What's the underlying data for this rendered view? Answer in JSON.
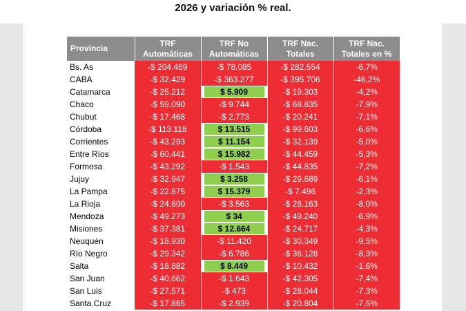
{
  "heading": "2026 y variación % real.",
  "table": {
    "headers": [
      {
        "line1": "Provincia",
        "line2": ""
      },
      {
        "line1": "TRF",
        "line2": "Automáticas"
      },
      {
        "line1": "TRF No",
        "line2": "Automáticas"
      },
      {
        "line1": "TRF Nac.",
        "line2": "Totales"
      },
      {
        "line1": "TRF Nac.",
        "line2": "Totales en %"
      }
    ],
    "rows": [
      {
        "provincia": "Bs. As",
        "auto": "-$ 204.469",
        "no_auto": "-$ 78.085",
        "totales": "-$ 282.554",
        "pct": "-6,7%"
      },
      {
        "provincia": "CABA",
        "auto": "-$ 32.429",
        "no_auto": "-$ 363.277",
        "totales": "-$ 395.706",
        "pct": "-46,2%"
      },
      {
        "provincia": "Catamarca",
        "auto": "-$ 25.212",
        "no_auto": "$ 5.909",
        "totales": "-$ 19.303",
        "pct": "-4,2%"
      },
      {
        "provincia": "Chaco",
        "auto": "-$ 59.090",
        "no_auto": "-$ 9.744",
        "totales": "-$ 68.835",
        "pct": "-7,9%"
      },
      {
        "provincia": "Chubut",
        "auto": "-$ 17.468",
        "no_auto": "-$ 2.773",
        "totales": "-$ 20.241",
        "pct": "-7,1%"
      },
      {
        "provincia": "Córdoba",
        "auto": "-$ 113.118",
        "no_auto": "$ 13.515",
        "totales": "-$ 99.603",
        "pct": "-6,6%"
      },
      {
        "provincia": "Corrientes",
        "auto": "-$ 43.293",
        "no_auto": "$ 11.154",
        "totales": "-$ 32.139",
        "pct": "-5,0%"
      },
      {
        "provincia": "Entre Ríos",
        "auto": "-$ 60.441",
        "no_auto": "$ 15.982",
        "totales": "-$ 44.459",
        "pct": "-5,3%"
      },
      {
        "provincia": "Formosa",
        "auto": "-$ 43.292",
        "no_auto": "-$ 1.543",
        "totales": "-$ 44.835",
        "pct": "-7,2%"
      },
      {
        "provincia": "Jujuy",
        "auto": "-$ 32.947",
        "no_auto": "$ 3.258",
        "totales": "-$ 29.689",
        "pct": "-6,1%"
      },
      {
        "provincia": "La Pampa",
        "auto": "-$ 22.875",
        "no_auto": "$ 15.379",
        "totales": "-$ 7.496",
        "pct": "-2,3%"
      },
      {
        "provincia": "La Rioja",
        "auto": "-$ 24.600",
        "no_auto": "-$ 3.563",
        "totales": "-$ 28.163",
        "pct": "-8,0%"
      },
      {
        "provincia": "Mendoza",
        "auto": "-$ 49.273",
        "no_auto": "$ 34",
        "totales": "-$ 49.240",
        "pct": "-6,9%"
      },
      {
        "provincia": "Misiones",
        "auto": "-$ 37.381",
        "no_auto": "$ 12.664",
        "totales": "-$ 24.717",
        "pct": "-4,3%"
      },
      {
        "provincia": "Neuquén",
        "auto": "-$ 18.930",
        "no_auto": "-$ 11.420",
        "totales": "-$ 30.349",
        "pct": "-9,5%"
      },
      {
        "provincia": "Río Negro",
        "auto": "-$ 29.342",
        "no_auto": "-$ 6.786",
        "totales": "-$ 36.128",
        "pct": "-8,3%"
      },
      {
        "provincia": "Salta",
        "auto": "-$ 18.882",
        "no_auto": "$ 8.449",
        "totales": "-$ 10.432",
        "pct": "-1,6%"
      },
      {
        "provincia": "San Juan",
        "auto": "-$ 40.662",
        "no_auto": "-$ 1.643",
        "totales": "-$ 42.305",
        "pct": "-7,4%"
      },
      {
        "provincia": "San Luis",
        "auto": "-$ 27.571",
        "no_auto": "-$ 473",
        "totales": "-$ 28.044",
        "pct": "-7,3%"
      },
      {
        "provincia": "Santa Cruz",
        "auto": "-$ 17.865",
        "no_auto": "-$ 2.939",
        "totales": "-$ 20.804",
        "pct": "-7,5%"
      }
    ]
  },
  "colors": {
    "header_bg": "#8c8c8c",
    "negative_bg": "#ee2c34",
    "positive_bg": "#8fcf4f"
  }
}
